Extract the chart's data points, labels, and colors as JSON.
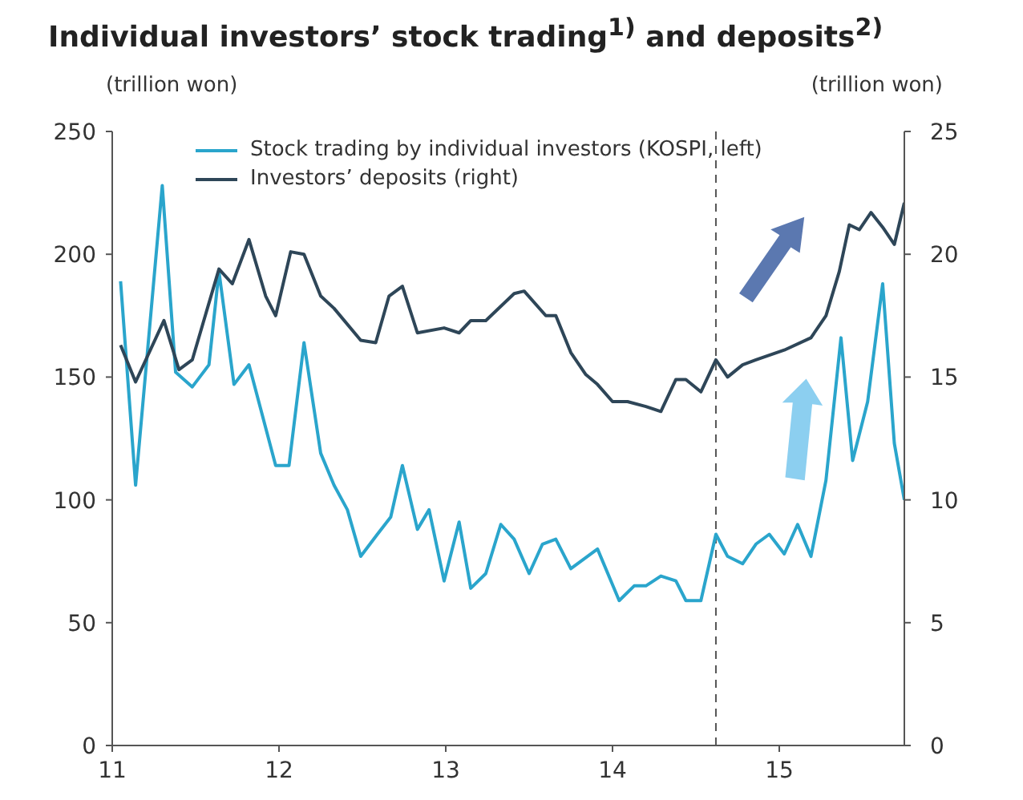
{
  "chart_data": {
    "type": "line",
    "title": "Individual investors’ stock trading$^{1)}$ and deposits$^{2)}$",
    "ylabel": "(trillion won)",
    "y2label": "(trillion won)",
    "xlim": [
      11,
      15.75
    ],
    "xticks": [
      11,
      12,
      13,
      14,
      15
    ],
    "ylim": [
      0,
      250
    ],
    "yticks": [
      0,
      50,
      100,
      150,
      200,
      250
    ],
    "y2lim": [
      0,
      25
    ],
    "y2ticks": [
      0,
      5,
      10,
      15,
      20,
      25
    ],
    "legend": "top left",
    "marker": "none",
    "line_style": "solid",
    "ref_lines": [
      {
        "axis": "x",
        "value": 14.62,
        "color": "#555555",
        "line_style": "dashed"
      }
    ],
    "series": [
      {
        "name": "Stock trading by individual investors (KOSPI, left)",
        "color": "#2aa5cc",
        "x": [
          11.05,
          11.14,
          11.3,
          11.38,
          11.48,
          11.58,
          11.64,
          11.73,
          11.82,
          11.98,
          12.06,
          12.15,
          12.25,
          12.33,
          12.41,
          12.49,
          12.59,
          12.67,
          12.74,
          12.83,
          12.9,
          12.99,
          13.08,
          13.15,
          13.24,
          13.33,
          13.41,
          13.5,
          13.58,
          13.66,
          13.75,
          13.91,
          14.04,
          14.13,
          14.2,
          14.29,
          14.38,
          14.44,
          14.53,
          14.62,
          14.69,
          14.78,
          14.86,
          14.94,
          15.03,
          15.11,
          15.19,
          15.28,
          15.37,
          15.44,
          15.53,
          15.62,
          15.69,
          15.75
        ],
        "values": [
          189,
          106,
          228,
          152,
          146,
          155,
          193,
          147,
          155,
          114,
          114,
          164,
          119,
          106,
          96,
          77,
          86,
          93,
          114,
          88,
          96,
          67,
          91,
          64,
          70,
          90,
          84,
          70,
          82,
          84,
          72,
          80,
          59,
          65,
          65,
          69,
          67,
          59,
          59,
          86,
          77,
          74,
          82,
          86,
          78,
          90,
          77,
          108,
          166,
          116,
          140,
          188,
          123,
          100
        ]
      },
      {
        "name": "Investors’ deposits (right)",
        "color": "#2e4658",
        "axis": "y2",
        "x": [
          11.05,
          11.14,
          11.31,
          11.4,
          11.48,
          11.64,
          11.72,
          11.82,
          11.92,
          11.98,
          12.07,
          12.15,
          12.25,
          12.33,
          12.49,
          12.58,
          12.66,
          12.74,
          12.83,
          12.99,
          13.08,
          13.15,
          13.24,
          13.41,
          13.47,
          13.6,
          13.66,
          13.75,
          13.84,
          13.91,
          14.0,
          14.09,
          14.2,
          14.29,
          14.38,
          14.44,
          14.53,
          14.62,
          14.69,
          14.78,
          14.86,
          15.03,
          15.19,
          15.28,
          15.36,
          15.42,
          15.48,
          15.55,
          15.62,
          15.69,
          15.75
        ],
        "values": [
          16.3,
          14.8,
          17.3,
          15.3,
          15.7,
          19.4,
          18.8,
          20.6,
          18.3,
          17.5,
          20.1,
          20.0,
          18.3,
          17.8,
          16.5,
          16.4,
          18.3,
          18.7,
          16.8,
          17.0,
          16.8,
          17.3,
          17.3,
          18.4,
          18.5,
          17.5,
          17.5,
          16.0,
          15.1,
          14.7,
          14.0,
          14.0,
          13.8,
          13.6,
          14.9,
          14.9,
          14.4,
          15.7,
          15.0,
          15.5,
          15.7,
          16.1,
          16.6,
          17.5,
          19.3,
          21.2,
          21.0,
          21.7,
          21.1,
          20.4,
          22.1
        ]
      }
    ]
  }
}
